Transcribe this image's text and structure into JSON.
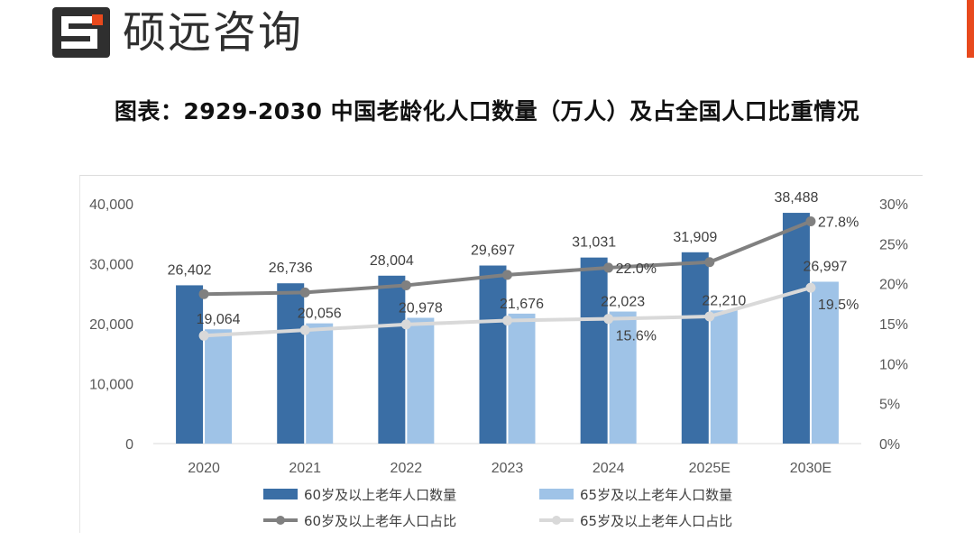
{
  "brand": {
    "name": "硕远咨询",
    "accent_color": "#e8491d"
  },
  "chart_data": {
    "type": "bar",
    "title": "图表：2929-2030 中国老龄化人口数量（万人）及占全国人口比重情况",
    "categories": [
      "2020",
      "2021",
      "2022",
      "2023",
      "2024",
      "2025E",
      "2030E"
    ],
    "series": [
      {
        "name": "60岁及以上老年人口数量",
        "kind": "bar",
        "axis": "left",
        "color": "#3a6ea5",
        "values": [
          26402,
          26736,
          28004,
          29697,
          31031,
          31909,
          38488
        ],
        "labels": [
          "26,402",
          "26,736",
          "28,004",
          "29,697",
          "31,031",
          "31,909",
          "38,488"
        ]
      },
      {
        "name": "65岁及以上老年人口数量",
        "kind": "bar",
        "axis": "left",
        "color": "#9fc3e7",
        "values": [
          19064,
          20056,
          20978,
          21676,
          22023,
          22210,
          26997
        ],
        "labels": [
          "19,064",
          "20,056",
          "20,978",
          "21,676",
          "22,023",
          "22,210",
          "26,997"
        ]
      },
      {
        "name": "60岁及以上老年人口占比",
        "kind": "line",
        "axis": "right",
        "color": "#808080",
        "values": [
          18.7,
          18.9,
          19.8,
          21.1,
          22.0,
          22.7,
          27.8
        ],
        "labels": [
          "",
          "",
          "",
          "",
          "22.0%",
          "",
          "27.8%"
        ]
      },
      {
        "name": "65岁及以上老年人口占比",
        "kind": "line",
        "axis": "right",
        "color": "#d9d9d9",
        "values": [
          13.5,
          14.2,
          14.9,
          15.4,
          15.6,
          15.9,
          19.5
        ],
        "labels": [
          "",
          "",
          "",
          "",
          "15.6%",
          "",
          "19.5%"
        ]
      }
    ],
    "y_left": {
      "min": 0,
      "max": 40000,
      "ticks": [
        "0",
        "10,000",
        "20,000",
        "30,000",
        "40,000"
      ]
    },
    "y_right": {
      "min": 0,
      "max": 30,
      "ticks": [
        "0%",
        "5%",
        "10%",
        "15%",
        "20%",
        "25%",
        "30%"
      ]
    },
    "legend_position": "bottom",
    "grid": false
  }
}
